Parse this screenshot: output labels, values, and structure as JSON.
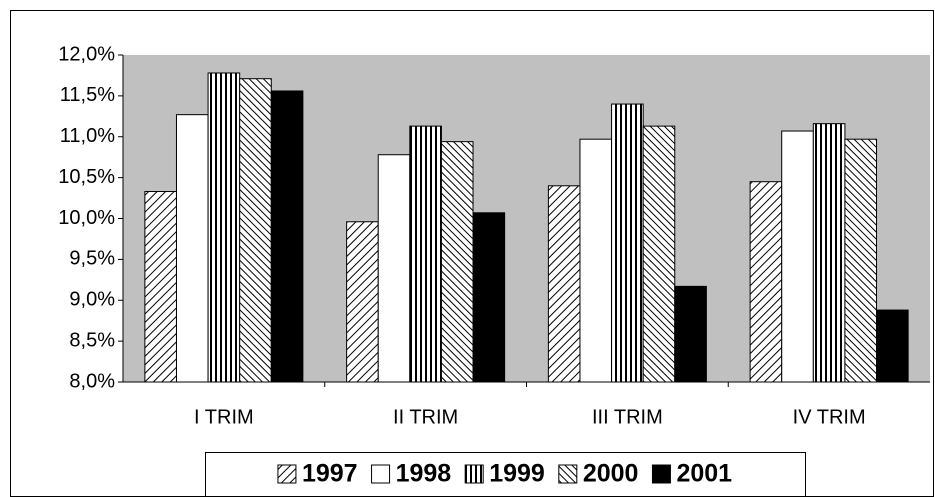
{
  "chart_data": {
    "type": "bar",
    "categories": [
      "I TRIM",
      "II TRIM",
      "III TRIM",
      "IV TRIM"
    ],
    "series": [
      {
        "name": "1997",
        "color": "#000000",
        "pattern": "hatch-forward",
        "values": [
          10.33,
          9.96,
          10.4,
          10.45
        ]
      },
      {
        "name": "1998",
        "color": "#ffffff",
        "pattern": "none",
        "values": [
          11.27,
          10.78,
          10.97,
          11.07
        ]
      },
      {
        "name": "1999",
        "color": "#000000",
        "pattern": "vertical",
        "values": [
          11.78,
          11.13,
          11.4,
          11.16
        ]
      },
      {
        "name": "2000",
        "color": "#000000",
        "pattern": "hatch-back",
        "values": [
          11.71,
          10.94,
          11.13,
          10.97
        ]
      },
      {
        "name": "2001",
        "color": "#000000",
        "pattern": "none",
        "values": [
          11.56,
          10.07,
          9.17,
          8.88
        ]
      }
    ],
    "ylim": [
      8,
      12
    ],
    "yticks": [
      {
        "value": 8,
        "label": "8,0%"
      },
      {
        "value": 8.5,
        "label": "8,5%"
      },
      {
        "value": 9,
        "label": "9,0%"
      },
      {
        "value": 9.5,
        "label": "9,5%"
      },
      {
        "value": 10,
        "label": "10,0%"
      },
      {
        "value": 10.5,
        "label": "10,5%"
      },
      {
        "value": 11,
        "label": "11,0%"
      },
      {
        "value": 11.5,
        "label": "11,5%"
      },
      {
        "value": 12,
        "label": "12,0%"
      }
    ],
    "plot_background": "#c0c0c0",
    "grid": false,
    "legend": "bottom"
  }
}
